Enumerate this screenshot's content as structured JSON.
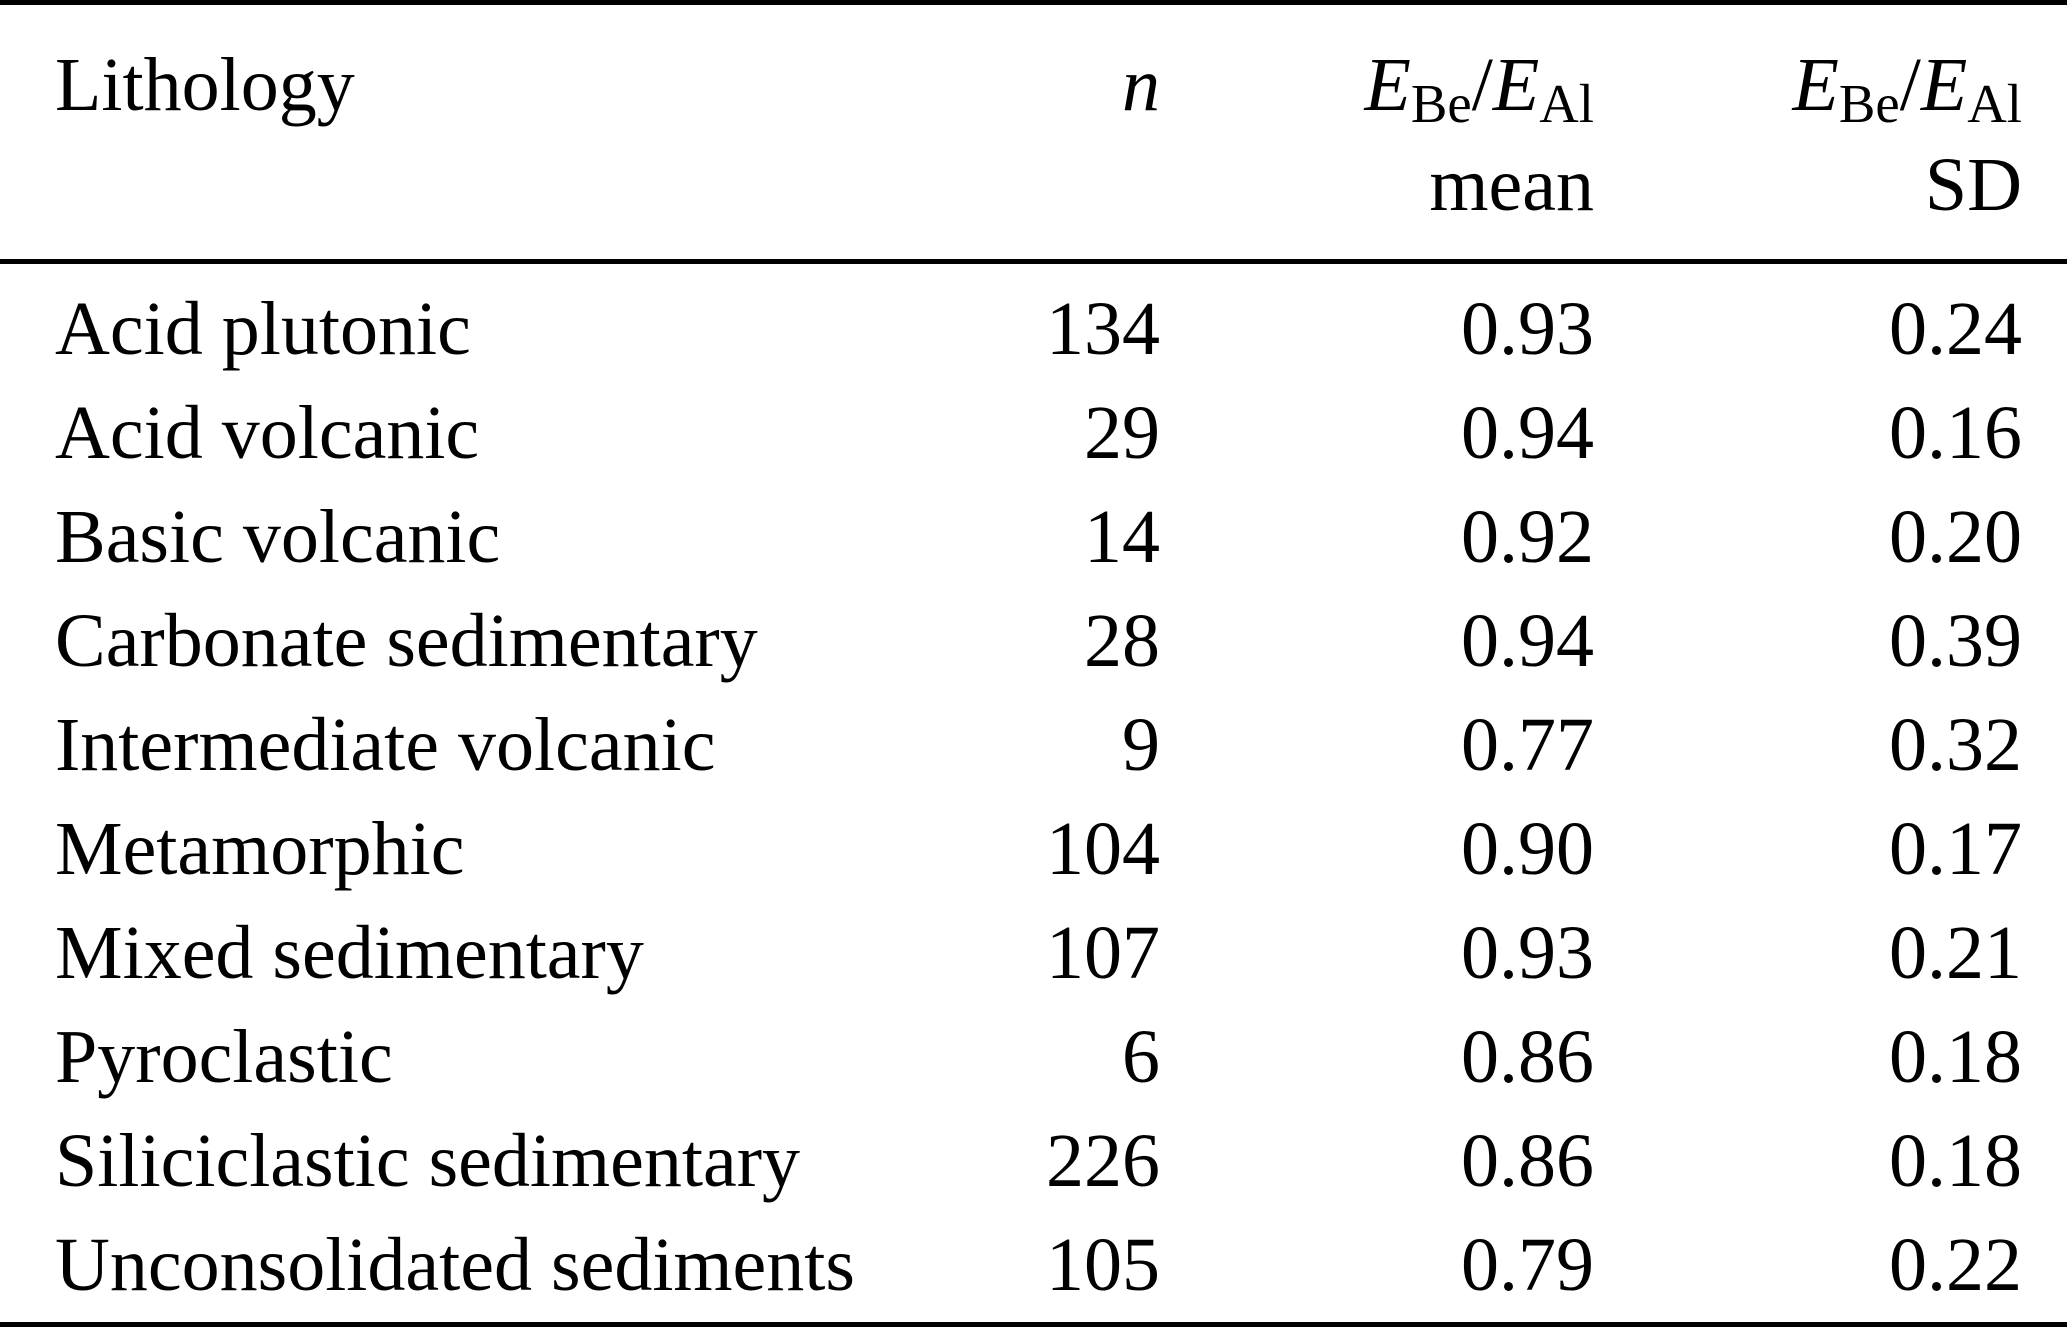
{
  "page": {
    "background_color": "#ffffff",
    "text_color": "#000000",
    "rule_color": "#000000"
  },
  "table": {
    "header": {
      "lithology_label": "Lithology",
      "n_label": "n",
      "ratio": {
        "e1": "E",
        "sub_be": "Be",
        "slash": "/",
        "e2": "E",
        "sub_al": "Al"
      },
      "mean_label": "mean",
      "sd_label": "SD"
    },
    "rows": [
      {
        "lithology": "Acid plutonic",
        "n": "134",
        "mean": "0.93",
        "sd": "0.24"
      },
      {
        "lithology": "Acid volcanic",
        "n": "29",
        "mean": "0.94",
        "sd": "0.16"
      },
      {
        "lithology": "Basic volcanic",
        "n": "14",
        "mean": "0.92",
        "sd": "0.20"
      },
      {
        "lithology": "Carbonate sedimentary",
        "n": "28",
        "mean": "0.94",
        "sd": "0.39"
      },
      {
        "lithology": "Intermediate volcanic",
        "n": "9",
        "mean": "0.77",
        "sd": "0.32"
      },
      {
        "lithology": "Metamorphic",
        "n": "104",
        "mean": "0.90",
        "sd": "0.17"
      },
      {
        "lithology": "Mixed sedimentary",
        "n": "107",
        "mean": "0.93",
        "sd": "0.21"
      },
      {
        "lithology": "Pyroclastic",
        "n": "6",
        "mean": "0.86",
        "sd": "0.18"
      },
      {
        "lithology": "Siliciclastic sedimentary",
        "n": "226",
        "mean": "0.86",
        "sd": "0.18"
      },
      {
        "lithology": "Unconsolidated sediments",
        "n": "105",
        "mean": "0.79",
        "sd": "0.22"
      }
    ]
  }
}
